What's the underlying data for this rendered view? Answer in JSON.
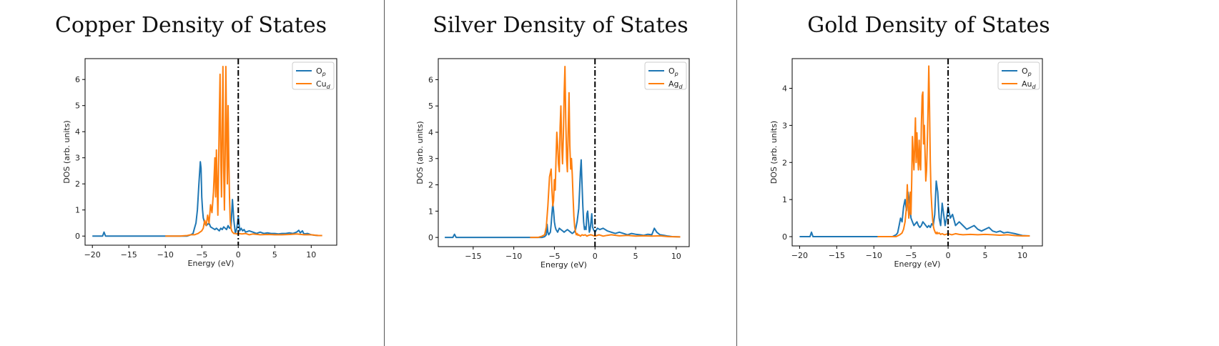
{
  "colors": {
    "op": "#1f77b4",
    "metal_d": "#ff7f0e",
    "fermi": "#000000"
  },
  "chart_data": [
    {
      "type": "line",
      "title": "Copper Density of States",
      "xlabel": "Energy (eV)",
      "ylabel": "DOS (arb. units)",
      "xlim": [
        -21,
        13.5
      ],
      "ylim": [
        -0.35,
        6.8
      ],
      "xticks": [
        -20,
        -15,
        -10,
        -5,
        0,
        5,
        10
      ],
      "yticks": [
        0,
        1,
        2,
        3,
        4,
        5,
        6
      ],
      "fermi_level": 0,
      "legend_position": "top-right",
      "legend": [
        {
          "main": "O",
          "sub": "p"
        },
        {
          "main": "Cu",
          "sub": "d"
        }
      ],
      "series": [
        {
          "name": "Op",
          "color_key": "op",
          "x": [
            -20,
            -19,
            -18.6,
            -18.4,
            -18.2,
            -17,
            -10,
            -7,
            -6.5,
            -6.2,
            -6,
            -5.8,
            -5.6,
            -5.4,
            -5.2,
            -5.1,
            -5,
            -4.9,
            -4.8,
            -4.6,
            -4.4,
            -4.2,
            -4,
            -3.8,
            -3.5,
            -3.2,
            -3,
            -2.8,
            -2.6,
            -2.4,
            -2.2,
            -2,
            -1.8,
            -1.6,
            -1.4,
            -1.2,
            -1,
            -0.8,
            -0.6,
            -0.4,
            -0.2,
            0,
            0.2,
            0.4,
            0.6,
            0.8,
            1,
            1.5,
            2,
            2.5,
            3,
            3.5,
            4,
            4.5,
            5,
            5.5,
            6,
            6.5,
            7,
            7.5,
            8,
            8.3,
            8.5,
            8.8,
            9,
            9.5,
            10,
            10.5,
            11,
            11.5
          ],
          "y": [
            0,
            0,
            0,
            0.15,
            0,
            0,
            0,
            0,
            0.05,
            0.1,
            0.3,
            0.5,
            1.0,
            2.0,
            2.85,
            2.6,
            1.5,
            1.0,
            0.7,
            0.5,
            0.4,
            0.45,
            0.5,
            0.35,
            0.3,
            0.25,
            0.3,
            0.25,
            0.2,
            0.3,
            0.25,
            0.35,
            0.3,
            0.25,
            0.4,
            0.3,
            0.35,
            1.4,
            0.6,
            0.1,
            0.3,
            0.75,
            0.2,
            0.3,
            0.2,
            0.25,
            0.15,
            0.2,
            0.15,
            0.1,
            0.15,
            0.1,
            0.12,
            0.1,
            0.1,
            0.08,
            0.1,
            0.1,
            0.12,
            0.1,
            0.15,
            0.22,
            0.12,
            0.2,
            0.08,
            0.1,
            0.05,
            0.03,
            0.02,
            0.02
          ]
        },
        {
          "name": "Cud",
          "color_key": "metal_d",
          "x": [
            -10,
            -8,
            -7,
            -6.5,
            -6,
            -5.5,
            -5,
            -4.8,
            -4.6,
            -4.4,
            -4.2,
            -4,
            -3.8,
            -3.6,
            -3.4,
            -3.2,
            -3.1,
            -3,
            -2.9,
            -2.8,
            -2.7,
            -2.6,
            -2.5,
            -2.4,
            -2.3,
            -2.2,
            -2.1,
            -2,
            -1.9,
            -1.8,
            -1.7,
            -1.6,
            -1.5,
            -1.4,
            -1.3,
            -1.2,
            -1.1,
            -1,
            -0.9,
            -0.8,
            -0.6,
            -0.4,
            -0.2,
            0,
            0.5,
            1,
            1.5,
            2,
            3,
            4,
            5,
            6,
            7,
            8,
            9,
            10,
            11,
            11.5
          ],
          "y": [
            0,
            0,
            0.02,
            0.05,
            0.05,
            0.1,
            0.2,
            0.3,
            0.6,
            0.4,
            0.8,
            0.5,
            1.2,
            0.9,
            1.7,
            3.0,
            1.5,
            3.3,
            2.0,
            0.8,
            2.5,
            4.5,
            6.2,
            3.0,
            1.5,
            4.0,
            6.5,
            2.5,
            1.0,
            3.0,
            6.5,
            4.0,
            2.0,
            5.0,
            3.0,
            1.5,
            0.6,
            0.3,
            0.2,
            0.15,
            0.1,
            0.1,
            0.08,
            0.1,
            0.08,
            0.1,
            0.05,
            0.08,
            0.05,
            0.06,
            0.05,
            0.05,
            0.06,
            0.08,
            0.05,
            0.05,
            0.02,
            0.02
          ]
        }
      ]
    },
    {
      "type": "line",
      "title": "Silver Density of States",
      "xlabel": "Energy (eV)",
      "ylabel": "DOS (arb. units)",
      "xlim": [
        -19.3,
        11.6
      ],
      "ylim": [
        -0.35,
        6.8
      ],
      "xticks": [
        -15,
        -10,
        -5,
        0,
        5,
        10
      ],
      "yticks": [
        0,
        1,
        2,
        3,
        4,
        5,
        6
      ],
      "fermi_level": 0,
      "legend_position": "top-right",
      "legend": [
        {
          "main": "O",
          "sub": "p"
        },
        {
          "main": "Ag",
          "sub": "d"
        }
      ],
      "series": [
        {
          "name": "Op",
          "color_key": "op",
          "x": [
            -18.5,
            -17.5,
            -17.3,
            -17.1,
            -16.5,
            -10,
            -7,
            -6.5,
            -6.2,
            -6,
            -5.9,
            -5.8,
            -5.7,
            -5.6,
            -5.5,
            -5.4,
            -5.3,
            -5.2,
            -5.1,
            -5,
            -4.9,
            -4.8,
            -4.6,
            -4.4,
            -4.2,
            -4,
            -3.8,
            -3.6,
            -3.4,
            -3.2,
            -3,
            -2.8,
            -2.6,
            -2.4,
            -2.2,
            -2,
            -1.9,
            -1.8,
            -1.7,
            -1.6,
            -1.5,
            -1.4,
            -1.3,
            -1.2,
            -1.1,
            -1,
            -0.9,
            -0.8,
            -0.7,
            -0.6,
            -0.5,
            -0.4,
            -0.3,
            -0.2,
            0,
            0.3,
            0.6,
            1,
            1.5,
            2,
            2.5,
            3,
            3.5,
            4,
            4.5,
            5,
            5.5,
            6,
            6.5,
            7,
            7.3,
            7.6,
            8,
            8.5,
            9,
            9.5,
            10.5
          ],
          "y": [
            0,
            0,
            0.12,
            0,
            0,
            0,
            0,
            0,
            0.03,
            0.1,
            0.5,
            0.2,
            0.1,
            0.15,
            0.2,
            0.5,
            0.9,
            1.3,
            1.0,
            0.6,
            0.4,
            0.3,
            0.2,
            0.35,
            0.3,
            0.25,
            0.2,
            0.25,
            0.3,
            0.25,
            0.2,
            0.15,
            0.2,
            0.3,
            0.6,
            1.1,
            1.8,
            2.5,
            2.95,
            2.0,
            1.2,
            0.6,
            0.3,
            0.4,
            0.3,
            0.9,
            1.0,
            0.6,
            0.2,
            0.3,
            0.6,
            0.9,
            0.4,
            0.3,
            0.2,
            0.35,
            0.3,
            0.35,
            0.25,
            0.2,
            0.15,
            0.2,
            0.15,
            0.1,
            0.15,
            0.12,
            0.1,
            0.08,
            0.12,
            0.1,
            0.35,
            0.2,
            0.1,
            0.08,
            0.05,
            0.03,
            0.02
          ]
        },
        {
          "name": "Agd",
          "color_key": "metal_d",
          "x": [
            -8,
            -7,
            -6.5,
            -6.2,
            -6,
            -5.8,
            -5.6,
            -5.4,
            -5.3,
            -5.2,
            -5.1,
            -5,
            -4.9,
            -4.8,
            -4.7,
            -4.6,
            -4.5,
            -4.4,
            -4.3,
            -4.2,
            -4.1,
            -4,
            -3.9,
            -3.8,
            -3.7,
            -3.6,
            -3.5,
            -3.4,
            -3.3,
            -3.2,
            -3.1,
            -3,
            -2.9,
            -2.8,
            -2.7,
            -2.6,
            -2.5,
            -2.4,
            -2.3,
            -2.2,
            -2.1,
            -2,
            -1.8,
            -1.6,
            -1.4,
            -1.2,
            -1,
            -0.8,
            -0.5,
            0,
            0.5,
            1,
            1.5,
            2,
            3,
            4,
            5,
            6,
            7,
            8,
            9,
            10.5
          ],
          "y": [
            0,
            0,
            0.05,
            0.1,
            0.4,
            1.2,
            2.3,
            2.6,
            1.8,
            1.2,
            1.4,
            2.2,
            1.8,
            3.0,
            4.0,
            3.5,
            2.8,
            2.5,
            4.2,
            5.0,
            3.5,
            2.8,
            3.8,
            5.5,
            6.5,
            4.5,
            3.0,
            2.5,
            4.0,
            5.5,
            3.5,
            2.6,
            3.0,
            2.4,
            1.5,
            0.8,
            0.4,
            0.2,
            0.1,
            0.15,
            0.08,
            0.1,
            0.05,
            0.1,
            0.08,
            0.1,
            0.05,
            0.08,
            0.1,
            0.05,
            0.1,
            0.05,
            0.08,
            0.1,
            0.06,
            0.08,
            0.05,
            0.06,
            0.05,
            0.06,
            0.03,
            0.02
          ]
        }
      ]
    },
    {
      "type": "line",
      "title": "Gold Density of States",
      "xlabel": "Energy (eV)",
      "ylabel": "DOS (arb. units)",
      "xlim": [
        -21,
        12.7
      ],
      "ylim": [
        -0.25,
        4.8
      ],
      "xticks": [
        -20,
        -15,
        -10,
        -5,
        0,
        5,
        10
      ],
      "yticks": [
        0,
        1,
        2,
        3,
        4
      ],
      "fermi_level": 0,
      "legend_position": "top-right",
      "legend": [
        {
          "main": "O",
          "sub": "p"
        },
        {
          "main": "Au",
          "sub": "d"
        }
      ],
      "series": [
        {
          "name": "Op",
          "color_key": "op",
          "x": [
            -20,
            -19,
            -18.6,
            -18.4,
            -18.2,
            -17,
            -10,
            -7.5,
            -7,
            -6.8,
            -6.6,
            -6.4,
            -6.2,
            -6,
            -5.8,
            -5.6,
            -5.4,
            -5.2,
            -5,
            -4.8,
            -4.6,
            -4.4,
            -4.2,
            -4,
            -3.8,
            -3.6,
            -3.4,
            -3.2,
            -3,
            -2.8,
            -2.6,
            -2.4,
            -2.2,
            -2,
            -1.8,
            -1.6,
            -1.4,
            -1.2,
            -1,
            -0.8,
            -0.6,
            -0.4,
            -0.2,
            0,
            0.3,
            0.6,
            1,
            1.5,
            2,
            2.5,
            3,
            3.5,
            4,
            4.5,
            5,
            5.5,
            6,
            6.5,
            7,
            7.5,
            8,
            8.5,
            9,
            10,
            11
          ],
          "y": [
            0,
            0,
            0,
            0.12,
            0,
            0,
            0,
            0,
            0.05,
            0.1,
            0.3,
            0.5,
            0.4,
            0.8,
            1.0,
            0.7,
            1.2,
            0.9,
            0.5,
            0.4,
            0.3,
            0.35,
            0.4,
            0.3,
            0.25,
            0.3,
            0.4,
            0.35,
            0.3,
            0.25,
            0.3,
            0.25,
            0.35,
            0.3,
            0.6,
            1.5,
            1.2,
            0.5,
            0.3,
            0.9,
            0.6,
            0.3,
            0.5,
            0.8,
            0.5,
            0.6,
            0.3,
            0.4,
            0.3,
            0.2,
            0.25,
            0.3,
            0.2,
            0.15,
            0.2,
            0.25,
            0.15,
            0.12,
            0.15,
            0.1,
            0.12,
            0.1,
            0.08,
            0.03,
            0.02
          ]
        },
        {
          "name": "Aud",
          "color_key": "metal_d",
          "x": [
            -9.5,
            -7,
            -6.5,
            -6.2,
            -6,
            -5.8,
            -5.6,
            -5.5,
            -5.4,
            -5.3,
            -5.2,
            -5.1,
            -5,
            -4.9,
            -4.8,
            -4.7,
            -4.6,
            -4.5,
            -4.4,
            -4.3,
            -4.2,
            -4.1,
            -4,
            -3.9,
            -3.8,
            -3.7,
            -3.6,
            -3.5,
            -3.4,
            -3.3,
            -3.2,
            -3.1,
            -3,
            -2.9,
            -2.8,
            -2.7,
            -2.6,
            -2.5,
            -2.4,
            -2.3,
            -2.2,
            -2.1,
            -2,
            -1.9,
            -1.8,
            -1.7,
            -1.6,
            -1.5,
            -1.4,
            -1.2,
            -1,
            -0.8,
            -0.5,
            0,
            0.5,
            1,
            1.5,
            2,
            3,
            4,
            5,
            6,
            7,
            8,
            9,
            10,
            11
          ],
          "y": [
            0,
            0,
            0.05,
            0.1,
            0.2,
            0.4,
            0.8,
            1.4,
            0.9,
            0.5,
            0.7,
            1.2,
            0.6,
            1.5,
            2.7,
            2.2,
            1.8,
            2.5,
            3.2,
            2.0,
            2.8,
            2.2,
            1.8,
            2.6,
            2.0,
            1.8,
            3.0,
            3.8,
            3.9,
            2.5,
            3.0,
            2.2,
            1.5,
            1.8,
            2.5,
            3.5,
            4.6,
            3.5,
            2.0,
            1.2,
            0.8,
            0.5,
            0.3,
            0.2,
            0.15,
            0.1,
            0.08,
            0.12,
            0.08,
            0.1,
            0.06,
            0.08,
            0.05,
            0.08,
            0.05,
            0.08,
            0.06,
            0.05,
            0.06,
            0.05,
            0.06,
            0.05,
            0.04,
            0.05,
            0.03,
            0.02,
            0.02
          ]
        }
      ]
    }
  ]
}
